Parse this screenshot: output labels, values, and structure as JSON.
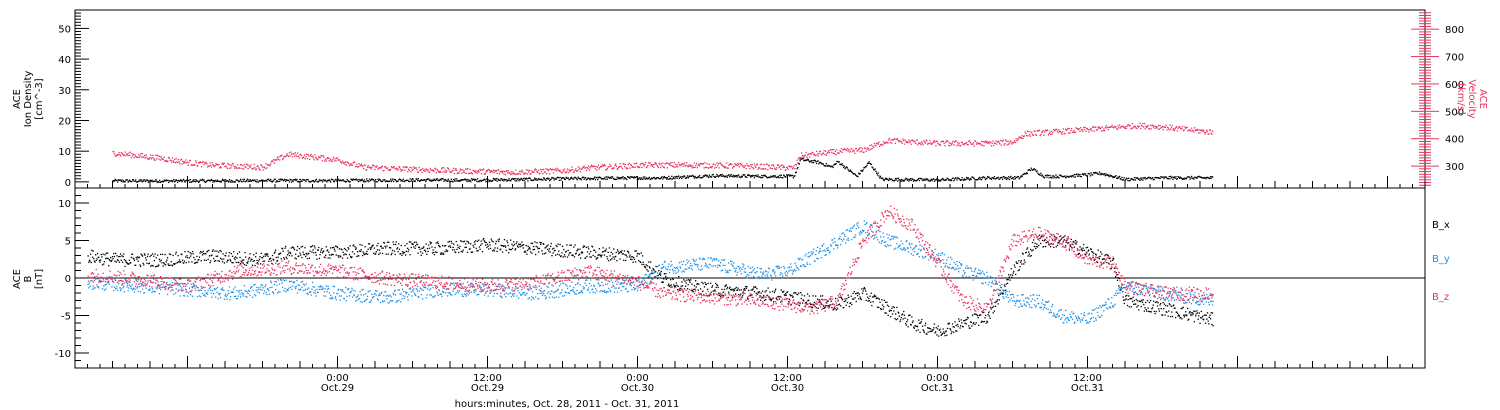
{
  "colors": {
    "black": "#000000",
    "magenta": "#e8335f",
    "blue": "#1e90e6",
    "frame": "#000000"
  },
  "chart_data": [
    {
      "type": "scatter",
      "panel": "top",
      "ylabel_left": [
        "ACE",
        "Ion Density",
        "[cm^-3]"
      ],
      "ylabel_right": [
        "ACE",
        "Velocity",
        "[km/s]"
      ],
      "ylim_left": [
        -2,
        56
      ],
      "ylim_right": [
        220,
        870
      ],
      "yticks_left": [
        "0",
        "10",
        "20",
        "30",
        "40",
        "50"
      ],
      "yticks_right": [
        "300",
        "400",
        "500",
        "600",
        "700",
        "800"
      ],
      "series": [
        {
          "name": "Ion Density",
          "color": "black",
          "axis": "left",
          "points": [
            [
              -18,
              0.5
            ],
            [
              -12,
              0.5
            ],
            [
              -6,
              0.6
            ],
            [
              0,
              0.6
            ],
            [
              6,
              0.8
            ],
            [
              10,
              0.7
            ],
            [
              14,
              0.9
            ],
            [
              18,
              1.2
            ],
            [
              22,
              1.4
            ],
            [
              26,
              1.5
            ],
            [
              30,
              2.2
            ],
            [
              34,
              2.0
            ],
            [
              36.5,
              2.0
            ],
            [
              37,
              7.5
            ],
            [
              38.5,
              6.5
            ],
            [
              39.5,
              5.0
            ],
            [
              40,
              6.8
            ],
            [
              41.5,
              2.0
            ],
            [
              42.5,
              6.5
            ],
            [
              43.5,
              1.0
            ],
            [
              48,
              0.8
            ],
            [
              52,
              1.5
            ],
            [
              54.5,
              1.5
            ],
            [
              55.5,
              4.5
            ],
            [
              56.5,
              2.0
            ],
            [
              58,
              2.0
            ],
            [
              60,
              2.5
            ],
            [
              61,
              3.0
            ],
            [
              63,
              1.0
            ],
            [
              66,
              1.5
            ],
            [
              70,
              1.5
            ]
          ]
        },
        {
          "name": "Velocity",
          "color": "magenta",
          "axis": "right",
          "points": [
            [
              -18,
              350
            ],
            [
              -14,
              330
            ],
            [
              -12,
              315
            ],
            [
              -10,
              305
            ],
            [
              -6,
              298
            ],
            [
              -4,
              345
            ],
            [
              -2,
              335
            ],
            [
              0,
              325
            ],
            [
              2,
              298
            ],
            [
              6,
              290
            ],
            [
              10,
              284
            ],
            [
              14,
              280
            ],
            [
              18,
              285
            ],
            [
              20,
              295
            ],
            [
              24,
              305
            ],
            [
              28,
              306
            ],
            [
              32,
              303
            ],
            [
              34,
              300
            ],
            [
              36.5,
              295
            ],
            [
              37,
              340
            ],
            [
              40,
              355
            ],
            [
              42,
              360
            ],
            [
              44,
              395
            ],
            [
              48,
              385
            ],
            [
              52,
              385
            ],
            [
              54,
              390
            ],
            [
              55,
              420
            ],
            [
              60,
              435
            ],
            [
              64,
              450
            ],
            [
              66,
              445
            ],
            [
              70,
              425
            ]
          ]
        }
      ]
    },
    {
      "type": "scatter",
      "panel": "bottom",
      "ylabel_left": [
        "ACE",
        "B",
        "[nT]"
      ],
      "ylim": [
        -12,
        12
      ],
      "yticks": [
        "-10",
        "-5",
        "0",
        "5",
        "10"
      ],
      "legend": [
        "B_x",
        "B_y",
        "B_z"
      ],
      "series": [
        {
          "name": "B_x",
          "color": "black",
          "points": [
            [
              -20,
              3
            ],
            [
              -18,
              2.5
            ],
            [
              -14,
              2.5
            ],
            [
              -10,
              3
            ],
            [
              -6,
              2.5
            ],
            [
              -4,
              3.5
            ],
            [
              0,
              3.5
            ],
            [
              4,
              4
            ],
            [
              8,
              4
            ],
            [
              12,
              4.5
            ],
            [
              16,
              4
            ],
            [
              20,
              3.5
            ],
            [
              24,
              3
            ],
            [
              26,
              0
            ],
            [
              28,
              -1
            ],
            [
              30,
              -1.5
            ],
            [
              34,
              -2
            ],
            [
              38,
              -3
            ],
            [
              40,
              -3.5
            ],
            [
              42,
              -2
            ],
            [
              44,
              -4
            ],
            [
              46,
              -6
            ],
            [
              48,
              -7
            ],
            [
              50,
              -6
            ],
            [
              52,
              -5
            ],
            [
              54,
              1
            ],
            [
              56,
              5
            ],
            [
              58,
              5
            ],
            [
              60,
              3.5
            ],
            [
              62,
              2
            ],
            [
              63,
              -3
            ],
            [
              66,
              -4
            ],
            [
              70,
              -5.5
            ]
          ]
        },
        {
          "name": "B_y",
          "color": "blue",
          "points": [
            [
              -20,
              -0.5
            ],
            [
              -16,
              -1
            ],
            [
              -12,
              -1.5
            ],
            [
              -8,
              -2
            ],
            [
              -4,
              -0.8
            ],
            [
              0,
              -2
            ],
            [
              4,
              -2.5
            ],
            [
              8,
              -1.5
            ],
            [
              12,
              -1.5
            ],
            [
              16,
              -2
            ],
            [
              20,
              -1
            ],
            [
              24,
              -1
            ],
            [
              26,
              1.5
            ],
            [
              30,
              2
            ],
            [
              34,
              0.5
            ],
            [
              36,
              1
            ],
            [
              38,
              3
            ],
            [
              40,
              5
            ],
            [
              42,
              7
            ],
            [
              44,
              5
            ],
            [
              46,
              4
            ],
            [
              48,
              3
            ],
            [
              50,
              1
            ],
            [
              52,
              0
            ],
            [
              54,
              -3
            ],
            [
              56,
              -3
            ],
            [
              58,
              -5
            ],
            [
              60,
              -5.5
            ],
            [
              62,
              -3
            ],
            [
              63,
              -1
            ],
            [
              66,
              -2
            ],
            [
              70,
              -3
            ]
          ]
        },
        {
          "name": "B_z",
          "color": "magenta",
          "points": [
            [
              -20,
              0.5
            ],
            [
              -16,
              0
            ],
            [
              -12,
              -1
            ],
            [
              -8,
              1
            ],
            [
              -4,
              1.5
            ],
            [
              0,
              1
            ],
            [
              4,
              0
            ],
            [
              8,
              -0.5
            ],
            [
              12,
              -1
            ],
            [
              16,
              -0.5
            ],
            [
              20,
              1
            ],
            [
              24,
              -0.5
            ],
            [
              26,
              -2
            ],
            [
              30,
              -2.5
            ],
            [
              34,
              -3
            ],
            [
              38,
              -4
            ],
            [
              40,
              -3
            ],
            [
              42,
              5
            ],
            [
              44,
              9
            ],
            [
              46,
              7
            ],
            [
              48,
              2
            ],
            [
              50,
              -3
            ],
            [
              52,
              -4
            ],
            [
              54,
              5
            ],
            [
              56,
              6
            ],
            [
              58,
              5
            ],
            [
              60,
              2.5
            ],
            [
              62,
              2
            ],
            [
              63,
              -1
            ],
            [
              66,
              -2
            ],
            [
              70,
              -2
            ]
          ]
        }
      ]
    },
    {
      "type": "axis",
      "panel": "time",
      "xlim_hours": [
        -21,
        87
      ],
      "ticks": [
        {
          "hour": 0,
          "top": "0:00",
          "bottom": "Oct.29"
        },
        {
          "hour": 12,
          "top": "12:00",
          "bottom": "Oct.29"
        },
        {
          "hour": 24,
          "top": "0:00",
          "bottom": "Oct.30"
        },
        {
          "hour": 36,
          "top": "12:00",
          "bottom": "Oct.30"
        },
        {
          "hour": 48,
          "top": "0:00",
          "bottom": "Oct.31"
        },
        {
          "hour": 60,
          "top": "12:00",
          "bottom": "Oct.31"
        }
      ],
      "xlabel": "hours:minutes, Oct. 28, 2011 - Oct. 31, 2011"
    }
  ]
}
